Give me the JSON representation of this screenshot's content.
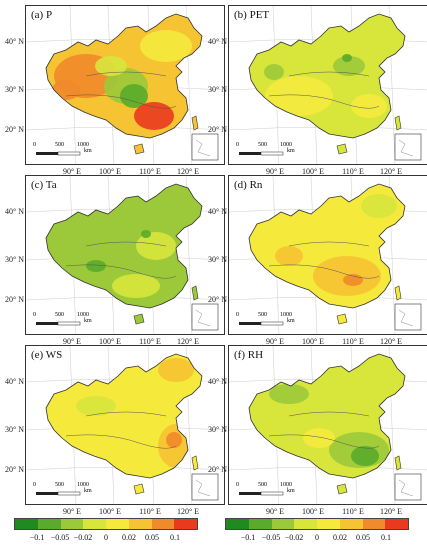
{
  "panels": [
    {
      "label": "(a) P",
      "scheme": "p"
    },
    {
      "label": "(b) PET",
      "scheme": "pet"
    },
    {
      "label": "(c) Ta",
      "scheme": "ta"
    },
    {
      "label": "(d) Rn",
      "scheme": "rn"
    },
    {
      "label": "(e) WS",
      "scheme": "ws"
    },
    {
      "label": "(f) RH",
      "scheme": "rh"
    }
  ],
  "lat_labels": [
    "40° N",
    "30° N",
    "20° N"
  ],
  "lon_labels": [
    "90° E",
    "100° E",
    "110° E",
    "120° E"
  ],
  "scalebar": {
    "ticks": [
      "0",
      "500",
      "1000"
    ],
    "unit": "km"
  },
  "legend": {
    "ticks": [
      "−0.1",
      "−0.05",
      "−0.02",
      "0",
      "0.02",
      "0.05",
      "0.1"
    ],
    "colors": [
      "#1f8a1f",
      "#5aab2b",
      "#9cc93a",
      "#d8e63c",
      "#f5ea3c",
      "#f6c332",
      "#f18a2a",
      "#ea3a1e"
    ]
  }
}
